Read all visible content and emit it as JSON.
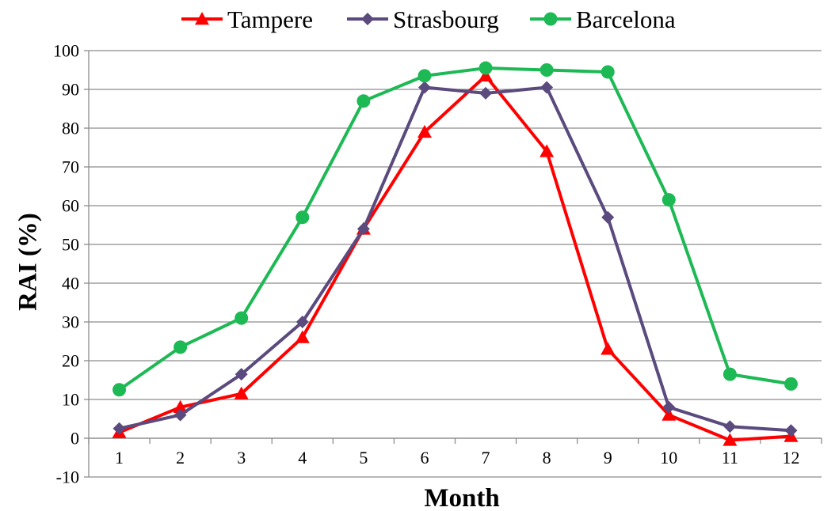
{
  "chart_data": {
    "type": "line",
    "title": "",
    "xlabel": "Month",
    "ylabel": "RAI (%)",
    "ylim": [
      -10,
      100
    ],
    "yticks": [
      -10,
      0,
      10,
      20,
      30,
      40,
      50,
      60,
      70,
      80,
      90,
      100
    ],
    "categories": [
      "1",
      "2",
      "3",
      "4",
      "5",
      "6",
      "7",
      "8",
      "9",
      "10",
      "11",
      "12"
    ],
    "grid": true,
    "legend_position": "top",
    "series": [
      {
        "name": "Tampere",
        "color": "#ff0000",
        "marker": "triangle",
        "values": [
          1.5,
          8,
          11.5,
          26,
          54,
          79,
          93.5,
          74,
          23,
          6,
          -0.5,
          0.5
        ]
      },
      {
        "name": "Strasbourg",
        "color": "#5b4a7d",
        "marker": "diamond",
        "values": [
          2.5,
          6,
          16.5,
          30,
          54,
          90.5,
          89,
          90.5,
          57,
          8,
          3,
          2
        ]
      },
      {
        "name": "Barcelona",
        "color": "#1db954",
        "marker": "circle",
        "values": [
          12.5,
          23.5,
          31,
          57,
          87,
          93.5,
          95.5,
          95,
          94.5,
          61.5,
          16.5,
          14
        ]
      }
    ]
  }
}
